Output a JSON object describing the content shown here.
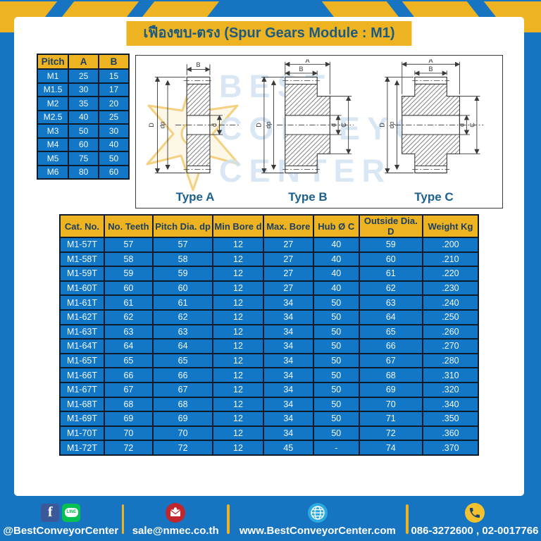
{
  "page": {
    "title": "เฟืองขบ-ตรง (Spur Gears Module : M1)"
  },
  "colors": {
    "page_blue": "#1674c0",
    "accent_yellow": "#eeb321",
    "title_navy": "#1d5a80",
    "cell_blue": "#1377c7",
    "header_text_navy": "#1c3f63",
    "type_label_blue": "#1b6190",
    "watermark_blue": "#cfe2f1",
    "facebook_blue": "#3b5998",
    "line_green": "#06c152",
    "email_red": "#c0262c",
    "globe_blue": "#2aa9e0",
    "phone_yellow": "#f2c130"
  },
  "pitch_table": {
    "headers": [
      "Pitch",
      "A",
      "B"
    ],
    "rows": [
      [
        "M1",
        "25",
        "15"
      ],
      [
        "M1.5",
        "30",
        "17"
      ],
      [
        "M2",
        "35",
        "20"
      ],
      [
        "M2.5",
        "40",
        "25"
      ],
      [
        "M3",
        "50",
        "30"
      ],
      [
        "M4",
        "60",
        "40"
      ],
      [
        "M5",
        "75",
        "50"
      ],
      [
        "M6",
        "80",
        "60"
      ]
    ]
  },
  "drawings": {
    "watermark": [
      "BEST",
      "CONVEYOR",
      "CENTER"
    ],
    "dims": {
      "A": "A",
      "B": "B",
      "C": "C",
      "D": "D",
      "dp": "dp",
      "d": "d"
    },
    "types": [
      {
        "label": "Type A"
      },
      {
        "label": "Type B"
      },
      {
        "label": "Type C"
      }
    ]
  },
  "catalog": {
    "headers": [
      "Cat. No.",
      "No. Teeth",
      "Pitch Dia. dp",
      "Min Bore d",
      "Max. Bore",
      "Hub Ø C",
      "Outside Dia. D",
      "Weight Kg"
    ],
    "rows": [
      [
        "M1-57T",
        "57",
        "57",
        "12",
        "27",
        "40",
        "59",
        ".200"
      ],
      [
        "M1-58T",
        "58",
        "58",
        "12",
        "27",
        "40",
        "60",
        ".210"
      ],
      [
        "M1-59T",
        "59",
        "59",
        "12",
        "27",
        "40",
        "61",
        ".220"
      ],
      [
        "M1-60T",
        "60",
        "60",
        "12",
        "27",
        "40",
        "62",
        ".230"
      ],
      [
        "M1-61T",
        "61",
        "61",
        "12",
        "34",
        "50",
        "63",
        ".240"
      ],
      [
        "M1-62T",
        "62",
        "62",
        "12",
        "34",
        "50",
        "64",
        ".250"
      ],
      [
        "M1-63T",
        "63",
        "63",
        "12",
        "34",
        "50",
        "65",
        ".260"
      ],
      [
        "M1-64T",
        "64",
        "64",
        "12",
        "34",
        "50",
        "66",
        ".270"
      ],
      [
        "M1-65T",
        "65",
        "65",
        "12",
        "34",
        "50",
        "67",
        ".280"
      ],
      [
        "M1-66T",
        "66",
        "66",
        "12",
        "34",
        "50",
        "68",
        ".310"
      ],
      [
        "M1-67T",
        "67",
        "67",
        "12",
        "34",
        "50",
        "69",
        ".320"
      ],
      [
        "M1-68T",
        "68",
        "68",
        "12",
        "34",
        "50",
        "70",
        ".340"
      ],
      [
        "M1-69T",
        "69",
        "69",
        "12",
        "34",
        "50",
        "71",
        ".350"
      ],
      [
        "M1-70T",
        "70",
        "70",
        "12",
        "34",
        "50",
        "72",
        ".360"
      ],
      [
        "M1-72T",
        "72",
        "72",
        "12",
        "45",
        "-",
        "74",
        ".370"
      ]
    ]
  },
  "footer": {
    "social_label": "@BestConveyorCenter",
    "email_label": "sale@nmec.co.th",
    "website_label": "www.BestConveyorCenter.com",
    "phone_label": "086-3272600 , 02-0017766",
    "line_text": "LINE",
    "facebook_letter": "f"
  }
}
